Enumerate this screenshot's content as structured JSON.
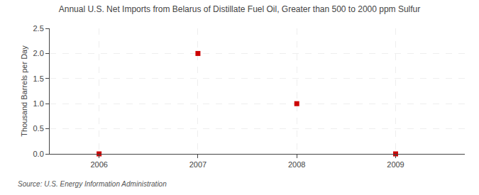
{
  "chart_data": {
    "type": "scatter",
    "title": "Annual U.S. Net Imports from Belarus of Distillate Fuel Oil, Greater than 500 to 2000 ppm Sulfur",
    "ylabel": "Thousand Barrels per Day",
    "source": "Source: U.S. Energy Information Administration",
    "x": [
      2006,
      2007,
      2008,
      2009
    ],
    "values": [
      0,
      2.0,
      1.0,
      0
    ],
    "color": "#cc0000",
    "marker": "square",
    "line_style": "none",
    "xlim": [
      2005.5,
      2009.7
    ],
    "ylim": [
      0,
      2.5
    ],
    "xticks": [
      2006,
      2007,
      2008,
      2009
    ],
    "yticks": [
      {
        "value": 0.0,
        "label": "0.0"
      },
      0.5,
      {
        "value": 1.0,
        "label": "1.0"
      },
      1.5,
      {
        "value": 2.0,
        "label": "2.0"
      },
      2.5
    ],
    "grid": true
  }
}
